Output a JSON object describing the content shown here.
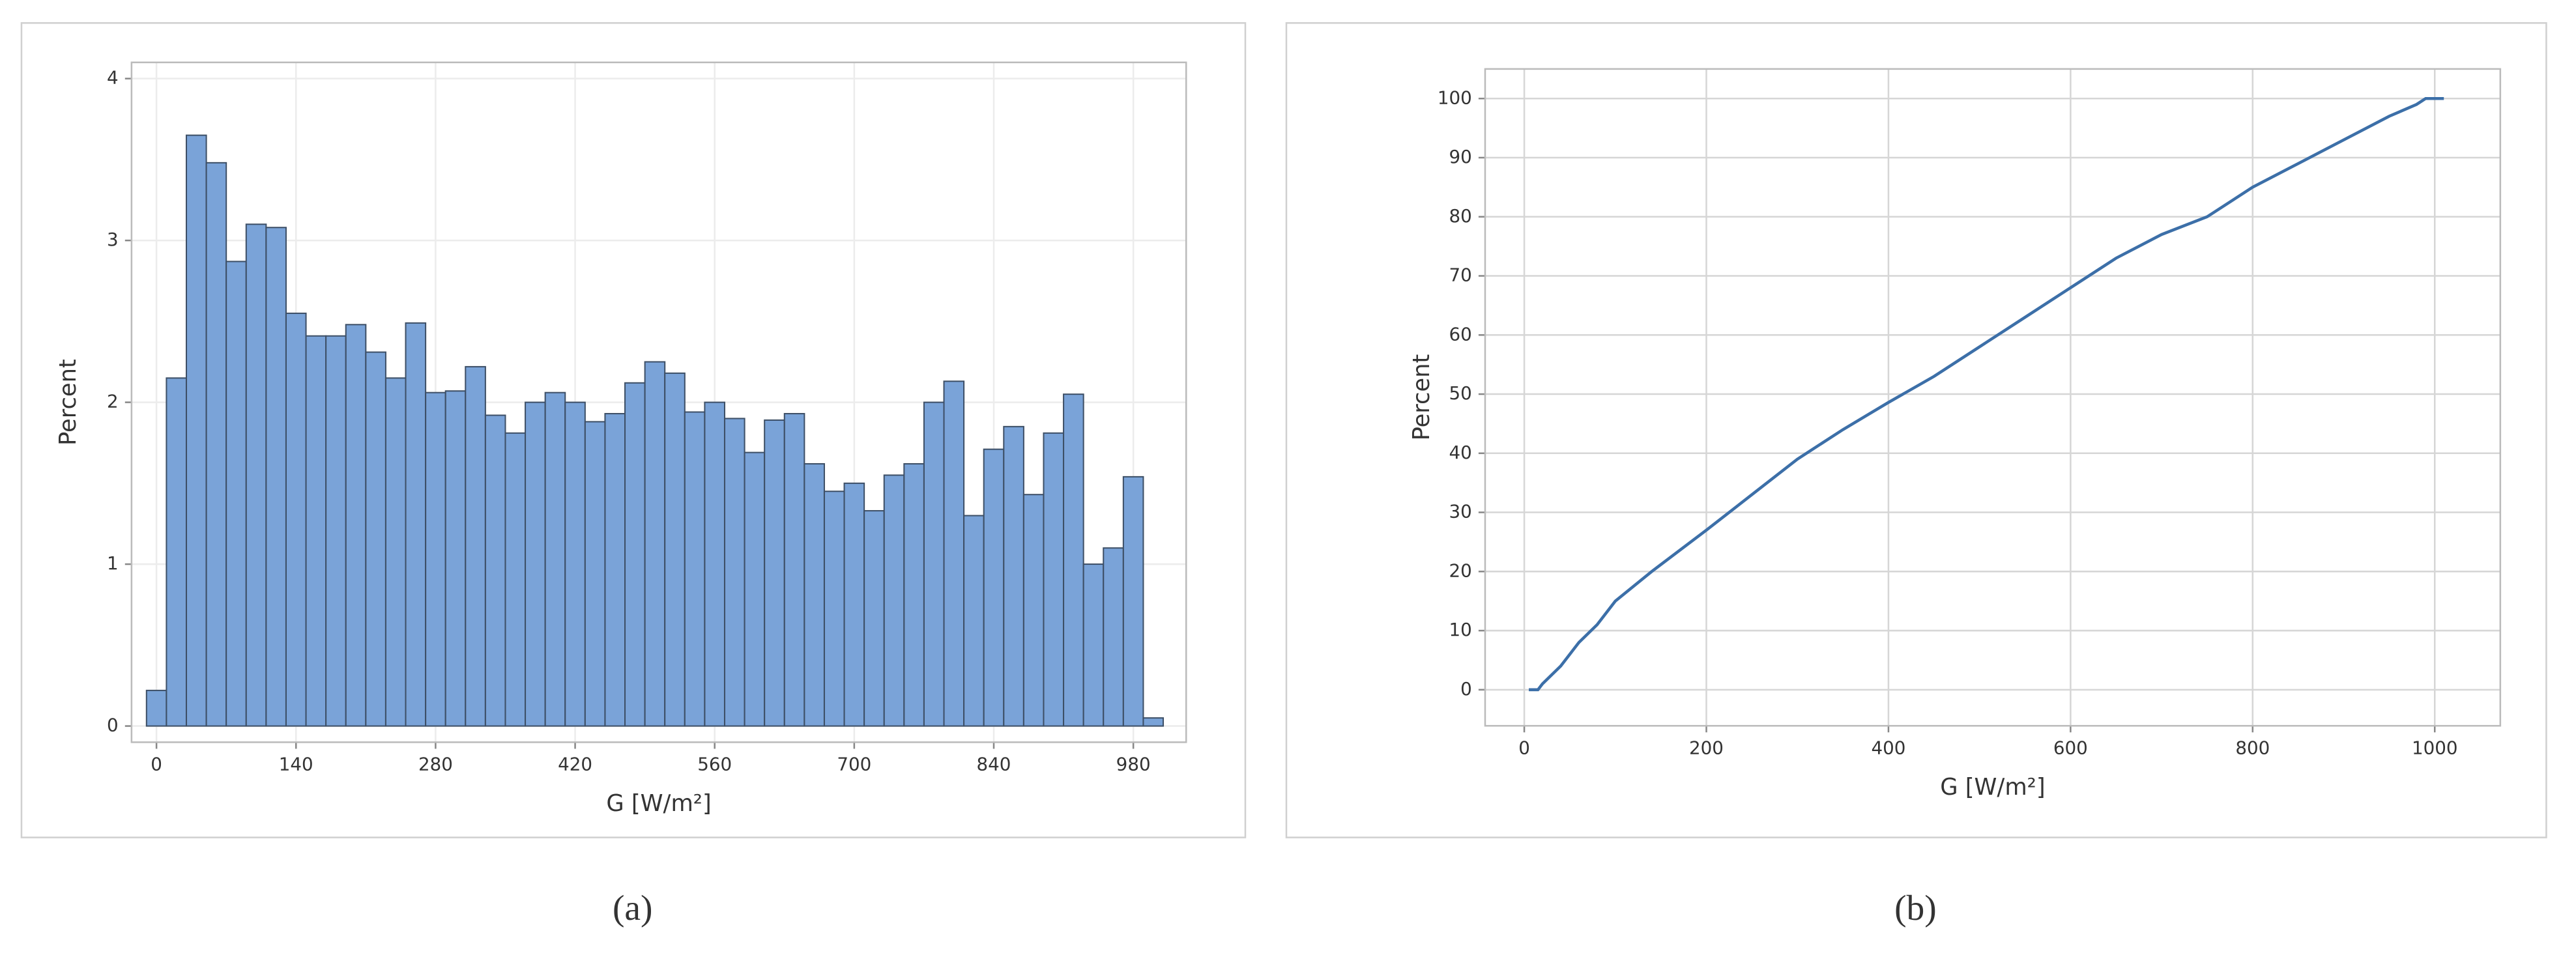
{
  "chart_data": [
    {
      "type": "histogram",
      "caption": "(a)",
      "xlabel": "G [W/m²]",
      "ylabel": "Percent",
      "bins": [
        -10,
        10,
        30,
        50,
        70,
        90,
        110,
        130,
        150,
        170,
        190,
        210,
        230,
        250,
        270,
        290,
        310,
        330,
        350,
        370,
        390,
        410,
        430,
        450,
        470,
        490,
        510,
        530,
        550,
        570,
        590,
        610,
        630,
        650,
        670,
        690,
        710,
        730,
        750,
        770,
        790,
        810,
        830,
        850,
        870,
        890,
        910,
        930,
        950,
        970,
        990,
        1010
      ],
      "values": [
        0.22,
        2.15,
        3.65,
        3.48,
        2.87,
        3.1,
        3.08,
        2.55,
        2.41,
        2.41,
        2.48,
        2.31,
        2.15,
        2.49,
        2.06,
        2.07,
        2.22,
        1.92,
        1.81,
        2.0,
        2.06,
        2.0,
        1.88,
        1.93,
        2.12,
        2.25,
        2.18,
        1.94,
        2.0,
        1.9,
        1.69,
        1.89,
        1.93,
        1.62,
        1.45,
        1.5,
        1.33,
        1.55,
        1.62,
        2.0,
        2.13,
        1.3,
        1.71,
        1.85,
        1.43,
        1.81,
        2.05,
        1.0,
        1.1,
        1.54,
        0.05
      ],
      "color": "#7aa3d8",
      "edgecolor": "#3d4f66",
      "xlim": [
        -25,
        1033
      ],
      "ylim": [
        -0.1,
        4.1
      ],
      "xticks": [
        0,
        140,
        280,
        420,
        560,
        700,
        840,
        980
      ],
      "yticks": [
        0,
        1,
        2,
        3,
        4
      ],
      "grid": true
    },
    {
      "type": "line",
      "caption": "(b)",
      "xlabel": "G [W/m²]",
      "ylabel": "Percent",
      "x": [
        5,
        15,
        20,
        40,
        60,
        80,
        100,
        140,
        200,
        250,
        300,
        350,
        400,
        450,
        500,
        550,
        600,
        650,
        700,
        750,
        800,
        850,
        900,
        950,
        980,
        990,
        1010
      ],
      "values": [
        0,
        0,
        1,
        4,
        8,
        11,
        15,
        20,
        27,
        33,
        39,
        44,
        48.6,
        53,
        58,
        63,
        68,
        73,
        77,
        80,
        85,
        89,
        93,
        97,
        99,
        100,
        100
      ],
      "color": "#3c6fa8",
      "xlim": [
        -43,
        1072
      ],
      "ylim": [
        -6.1,
        105
      ],
      "xticks": [
        0,
        200,
        400,
        600,
        800,
        1000
      ],
      "yticks": [
        0,
        10,
        20,
        30,
        40,
        50,
        60,
        70,
        80,
        90,
        100
      ],
      "grid": true
    }
  ]
}
